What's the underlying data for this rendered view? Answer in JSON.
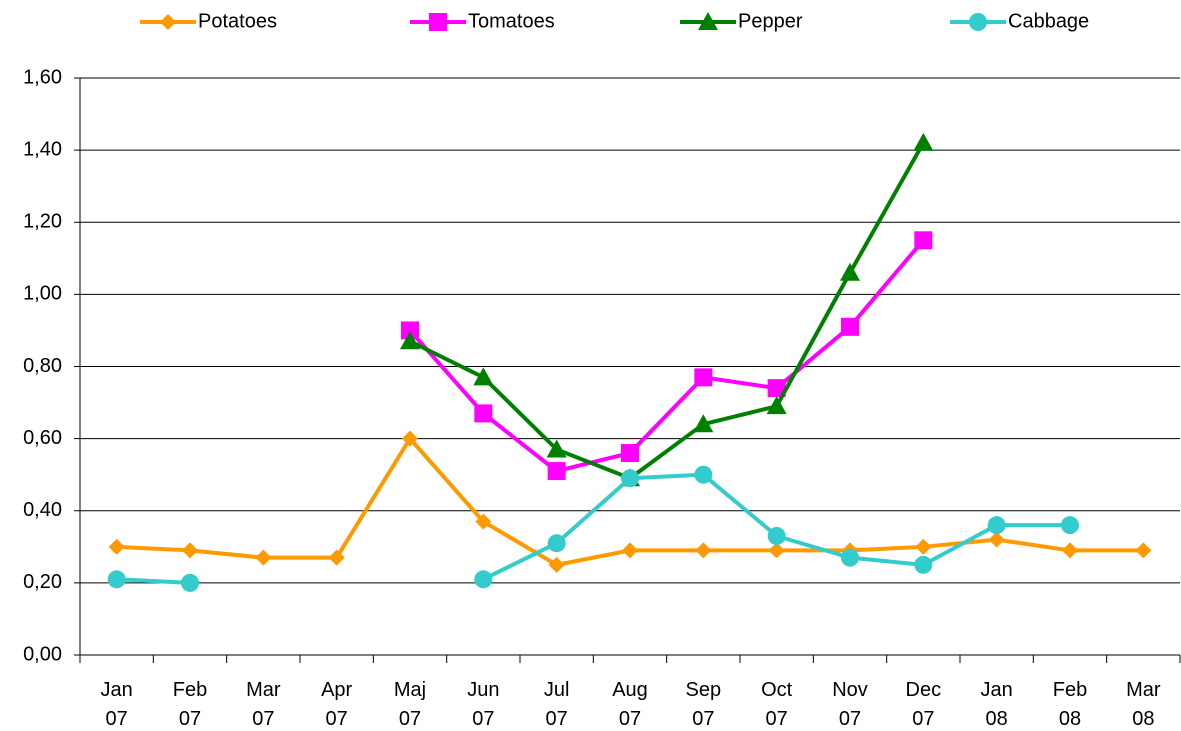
{
  "chart_data": {
    "type": "line",
    "categories": [
      "Jan 07",
      "Feb 07",
      "Mar 07",
      "Apr 07",
      "Maj 07",
      "Jun 07",
      "Jul 07",
      "Aug 07",
      "Sep 07",
      "Oct 07",
      "Nov 07",
      "Dec 07",
      "Jan 08",
      "Feb 08",
      "Mar 08"
    ],
    "series": [
      {
        "name": "Potatoes",
        "color": "#FF9900",
        "marker": "diamond",
        "values": [
          0.3,
          0.29,
          0.27,
          0.27,
          0.6,
          0.37,
          0.25,
          0.29,
          0.29,
          0.29,
          0.29,
          0.3,
          0.32,
          0.29,
          0.29
        ]
      },
      {
        "name": "Tomatoes",
        "color": "#FF00FF",
        "marker": "square",
        "values": [
          null,
          null,
          null,
          null,
          0.9,
          0.67,
          0.51,
          0.56,
          0.77,
          0.74,
          0.91,
          1.15,
          null,
          null,
          null
        ]
      },
      {
        "name": "Pepper",
        "color": "#008000",
        "marker": "triangle",
        "values": [
          null,
          null,
          null,
          null,
          0.87,
          0.77,
          0.57,
          0.49,
          0.64,
          0.69,
          1.06,
          1.42,
          null,
          null,
          null
        ]
      },
      {
        "name": "Cabbage",
        "color": "#33CCCC",
        "marker": "circle",
        "values": [
          0.21,
          0.2,
          null,
          null,
          null,
          0.21,
          0.31,
          0.49,
          0.5,
          0.33,
          0.27,
          0.25,
          0.36,
          0.36,
          null
        ]
      }
    ],
    "ylim": [
      0,
      1.6
    ],
    "yticks": [
      {
        "value": 0,
        "label": "0,00"
      },
      {
        "value": 0.2,
        "label": "0,20"
      },
      {
        "value": 0.4,
        "label": "0,40"
      },
      {
        "value": 0.6,
        "label": "0,60"
      },
      {
        "value": 0.8,
        "label": "0,80"
      },
      {
        "value": 1.0,
        "label": "1,00"
      },
      {
        "value": 1.2,
        "label": "1,20"
      },
      {
        "value": 1.4,
        "label": "1,40"
      },
      {
        "value": 1.6,
        "label": "1,60"
      }
    ],
    "grid": true,
    "legend": "top"
  }
}
